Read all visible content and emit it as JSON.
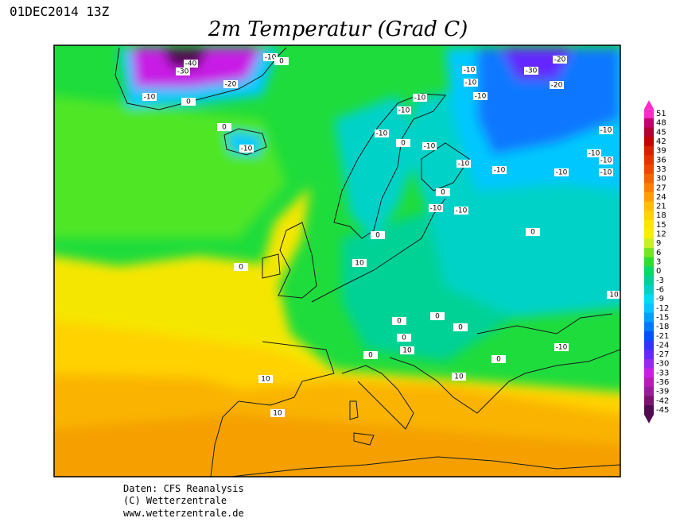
{
  "header": {
    "run": "01DEC2014 13Z",
    "title": "2m Temperatur (Grad C)"
  },
  "colorbar": {
    "values": [
      51,
      48,
      45,
      42,
      39,
      36,
      33,
      30,
      27,
      24,
      21,
      18,
      15,
      12,
      9,
      6,
      3,
      0,
      -3,
      -6,
      -9,
      -12,
      -15,
      -18,
      -21,
      -24,
      -27,
      -30,
      -33,
      -36,
      -39,
      -42,
      -45
    ],
    "colors": [
      "#ff28c8",
      "#c8006e",
      "#b40032",
      "#c80000",
      "#dc1e00",
      "#e63200",
      "#f04600",
      "#f56400",
      "#fa8200",
      "#ffa000",
      "#ffbe00",
      "#ffd200",
      "#ffe600",
      "#f5f000",
      "#c8f01e",
      "#78e61e",
      "#32dc32",
      "#00dc64",
      "#00d296",
      "#00d2c8",
      "#00dcf0",
      "#00c8ff",
      "#00a0ff",
      "#0078ff",
      "#0050ff",
      "#3232ff",
      "#6428ff",
      "#9628f0",
      "#c81ee6",
      "#b41eb4",
      "#961e96",
      "#78146e",
      "#500a50"
    ]
  },
  "contour_labels": [
    -40,
    -30,
    -20,
    -10,
    0,
    -10,
    0,
    0,
    -10,
    -10,
    -10,
    -10,
    -10,
    -10,
    -30,
    -20,
    -20,
    -10,
    0,
    -10,
    -10,
    -10,
    -10,
    -10,
    -10,
    -10,
    0,
    -10,
    -10,
    -10,
    0,
    0,
    10,
    0,
    0,
    0,
    0,
    0,
    10,
    0,
    0,
    -10,
    10,
    10,
    10,
    10
  ],
  "footer": {
    "line1": "Daten: CFS Reanalysis",
    "line2": "(C) Wetterzentrale",
    "line3": "www.wetterzentrale.de"
  }
}
